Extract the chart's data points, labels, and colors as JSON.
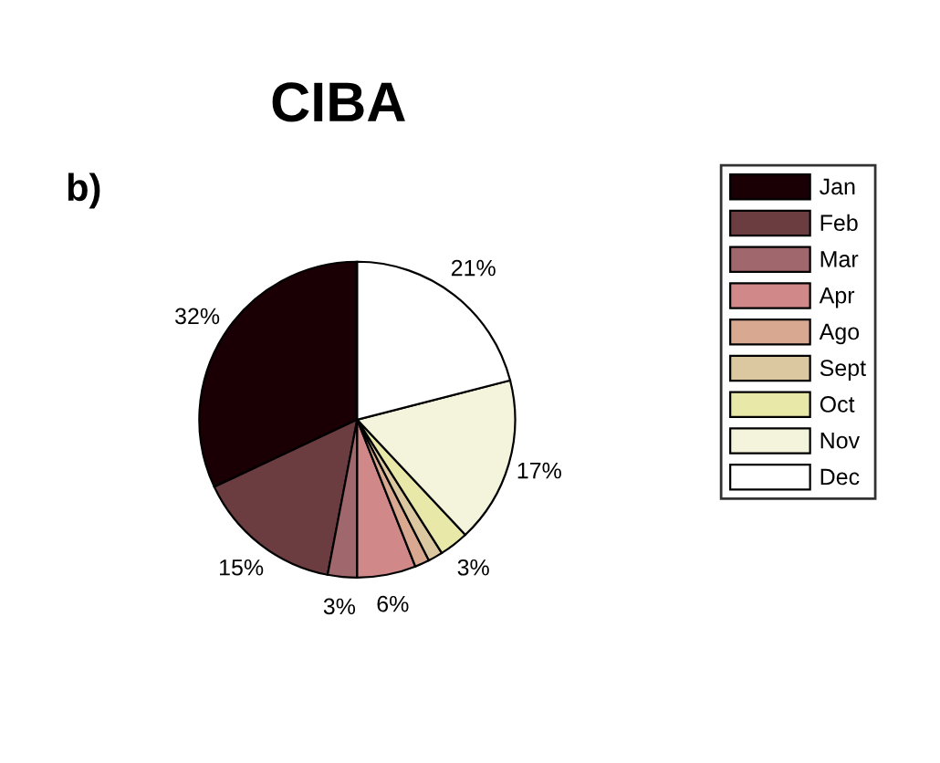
{
  "chart_data": {
    "type": "pie",
    "title": "CIBA",
    "annotations": [
      "b)"
    ],
    "categories": [
      "Jan",
      "Feb",
      "Mar",
      "Apr",
      "Ago",
      "Sept",
      "Oct",
      "Nov",
      "Dec"
    ],
    "values": [
      32,
      15,
      3,
      6,
      1.5,
      1.5,
      3,
      17,
      21
    ],
    "value_labels": [
      "32%",
      "15%",
      "3%",
      "6%",
      null,
      null,
      "3%",
      "17%",
      "21%"
    ],
    "colors": [
      "#1a0005",
      "#6b3c40",
      "#a0686c",
      "#d08888",
      "#d8a890",
      "#dcc8a0",
      "#e8e8a8",
      "#f4f4dc",
      "#ffffff"
    ],
    "legend": "right"
  }
}
